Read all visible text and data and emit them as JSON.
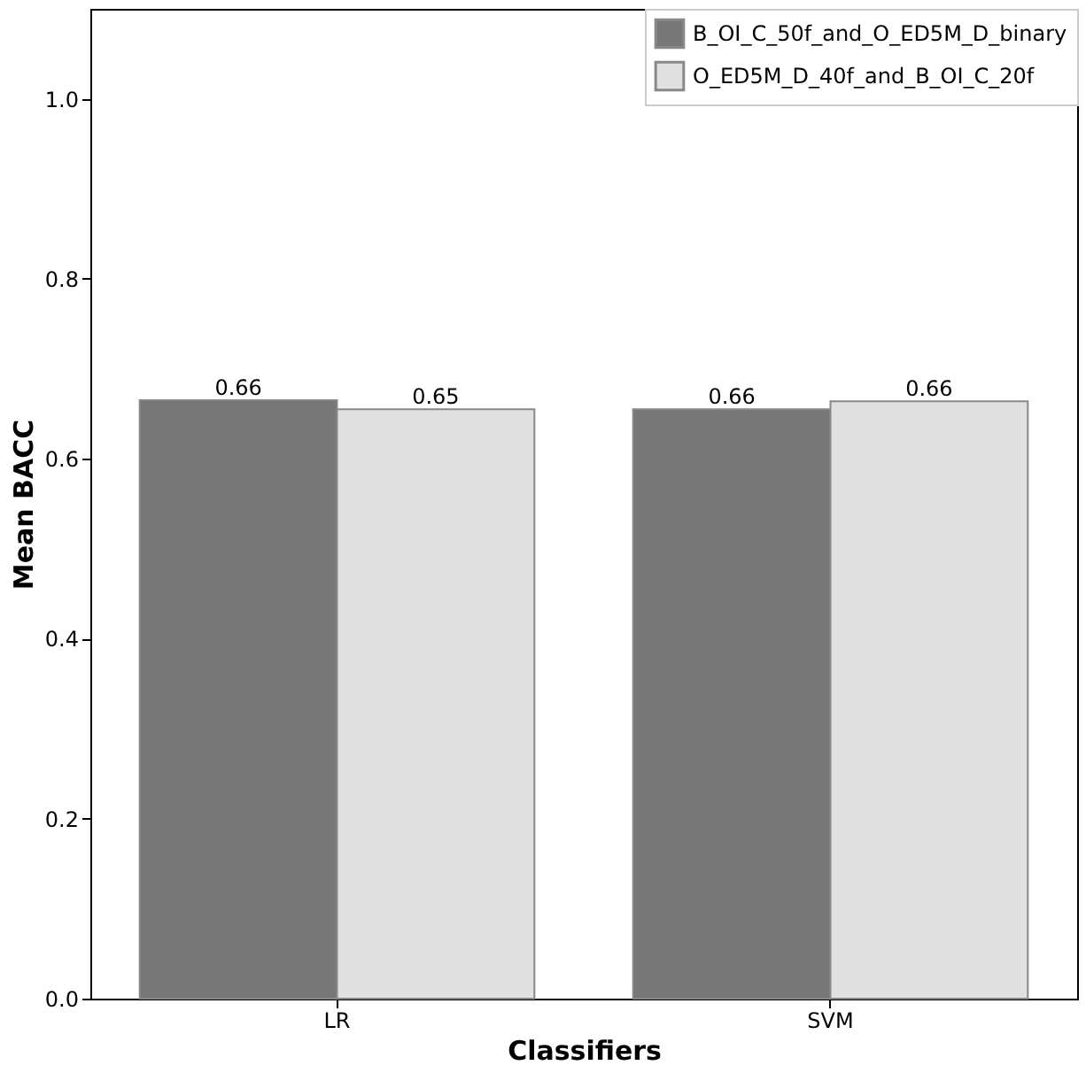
{
  "chart_data": {
    "type": "bar",
    "xlabel": "Classifiers",
    "ylabel": "Mean BACC",
    "categories": [
      "LR",
      "SVM"
    ],
    "series": [
      {
        "name": "B_OI_C_50f_and_O_ED5M_D_binary",
        "color": "#777777",
        "values": [
          0.665,
          0.655
        ],
        "value_labels": [
          "0.66",
          "0.66"
        ]
      },
      {
        "name": "O_ED5M_D_40f_and_B_OI_C_20f",
        "color": "#e0e0e0",
        "values": [
          0.655,
          0.664
        ],
        "value_labels": [
          "0.65",
          "0.66"
        ]
      }
    ],
    "ylim": [
      0,
      1.1
    ],
    "yticks": [
      {
        "value": 0,
        "label": "0.0"
      },
      {
        "value": 0.2,
        "label": "0.2"
      },
      {
        "value": 0.4,
        "label": "0.4"
      },
      {
        "value": 0.6,
        "label": "0.6"
      },
      {
        "value": 0.8,
        "label": "0.8"
      },
      {
        "value": 1.0,
        "label": "1.0"
      }
    ],
    "grid": false,
    "legend": "top right"
  }
}
